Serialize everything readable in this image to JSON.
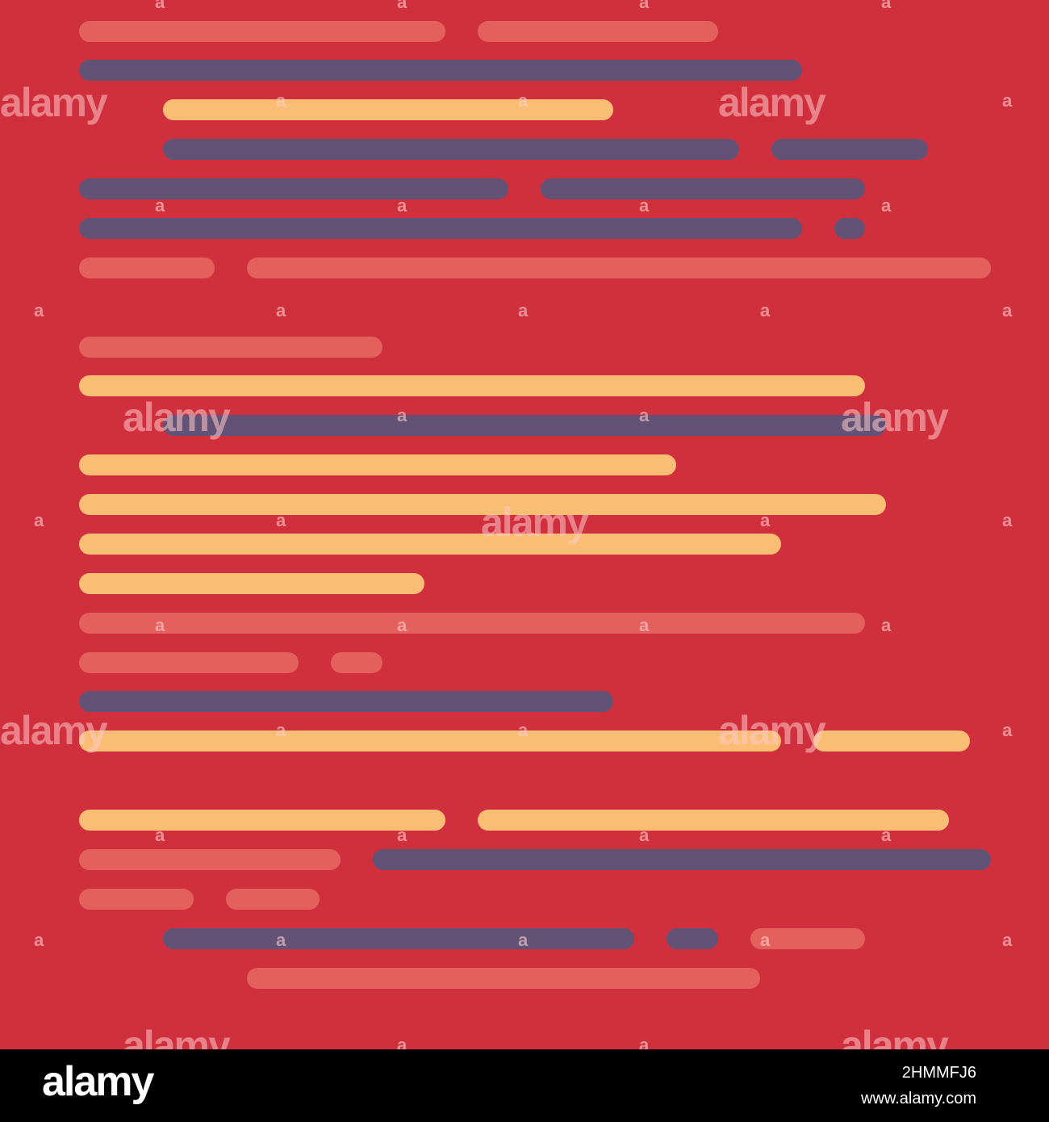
{
  "colors": {
    "background": "#d0303d",
    "salmon": "#e4605c",
    "purple": "#625376",
    "yellow": "#f9be74"
  },
  "watermark": {
    "big_text": "alamy",
    "small_text": "a"
  },
  "footer": {
    "logo": "alamy",
    "image_id": "2HMMFJ6",
    "url": "www.alamy.com"
  }
}
